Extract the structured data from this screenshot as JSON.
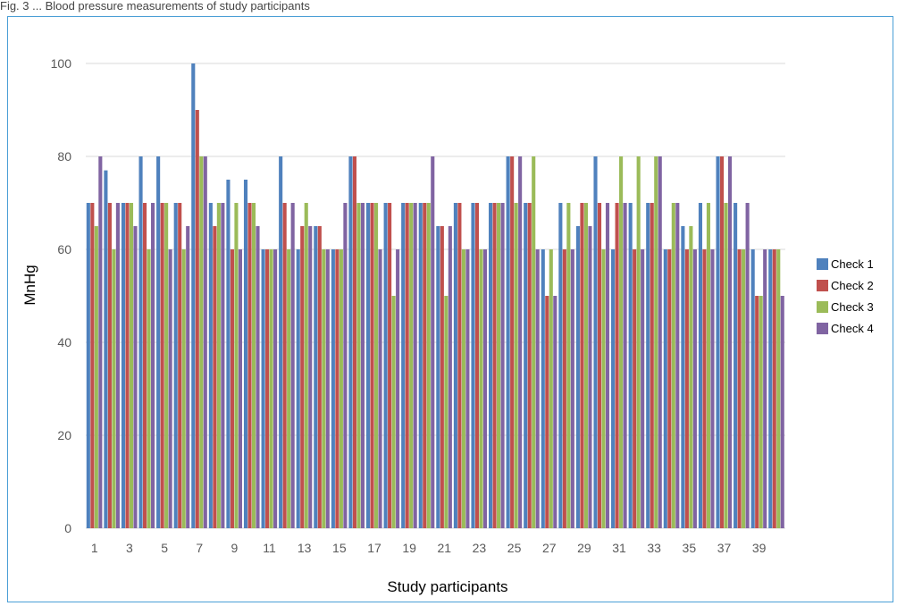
{
  "chart_data": {
    "type": "bar",
    "title": "",
    "xlabel": "Study participants",
    "ylabel": "MnHg",
    "ylim": [
      0,
      100
    ],
    "yticks": [
      0,
      20,
      40,
      60,
      80,
      100
    ],
    "grid": true,
    "legend_position": "right",
    "categories": [
      "1",
      "2",
      "3",
      "4",
      "5",
      "6",
      "7",
      "8",
      "9",
      "10",
      "11",
      "12",
      "13",
      "14",
      "15",
      "16",
      "17",
      "18",
      "19",
      "20",
      "21",
      "22",
      "23",
      "24",
      "25",
      "26",
      "27",
      "28",
      "29",
      "30",
      "31",
      "32",
      "33",
      "34",
      "35",
      "36",
      "37",
      "38",
      "39",
      "40"
    ],
    "xtick_labels": [
      "1",
      "",
      "3",
      "",
      "5",
      "",
      "7",
      "",
      "9",
      "",
      "11",
      "",
      "13",
      "",
      "15",
      "",
      "17",
      "",
      "19",
      "",
      "21",
      "",
      "23",
      "",
      "25",
      "",
      "27",
      "",
      "29",
      "",
      "31",
      "",
      "33",
      "",
      "35",
      "",
      "37",
      "",
      "39",
      ""
    ],
    "series": [
      {
        "name": "Check 1",
        "color": "#4f81bd",
        "values": [
          70,
          77,
          70,
          80,
          80,
          70,
          100,
          70,
          75,
          75,
          60,
          80,
          60,
          65,
          60,
          80,
          70,
          70,
          70,
          70,
          65,
          70,
          70,
          70,
          80,
          70,
          60,
          70,
          65,
          80,
          60,
          70,
          70,
          60,
          65,
          70,
          80,
          70,
          60,
          60
        ]
      },
      {
        "name": "Check 2",
        "color": "#c0504d",
        "values": [
          70,
          70,
          70,
          70,
          70,
          70,
          90,
          65,
          60,
          70,
          60,
          70,
          65,
          65,
          60,
          80,
          70,
          70,
          70,
          70,
          65,
          70,
          70,
          70,
          80,
          70,
          50,
          60,
          70,
          70,
          70,
          60,
          70,
          60,
          60,
          60,
          80,
          60,
          50,
          60
        ]
      },
      {
        "name": "Check 3",
        "color": "#9bbb59",
        "values": [
          65,
          60,
          70,
          60,
          70,
          60,
          80,
          70,
          70,
          70,
          60,
          60,
          70,
          60,
          60,
          70,
          70,
          50,
          70,
          70,
          50,
          60,
          60,
          70,
          70,
          80,
          60,
          70,
          70,
          60,
          80,
          80,
          80,
          70,
          65,
          70,
          70,
          60,
          50,
          60
        ]
      },
      {
        "name": "Check 4",
        "color": "#8064a2",
        "values": [
          80,
          70,
          65,
          70,
          60,
          65,
          80,
          70,
          60,
          65,
          60,
          70,
          65,
          60,
          70,
          70,
          60,
          60,
          70,
          80,
          65,
          60,
          60,
          70,
          80,
          60,
          50,
          60,
          65,
          70,
          70,
          60,
          80,
          70,
          60,
          60,
          80,
          70,
          60,
          50
        ]
      }
    ]
  },
  "header_text": "Fig. 3 ... Blood pressure measurements of study participants"
}
